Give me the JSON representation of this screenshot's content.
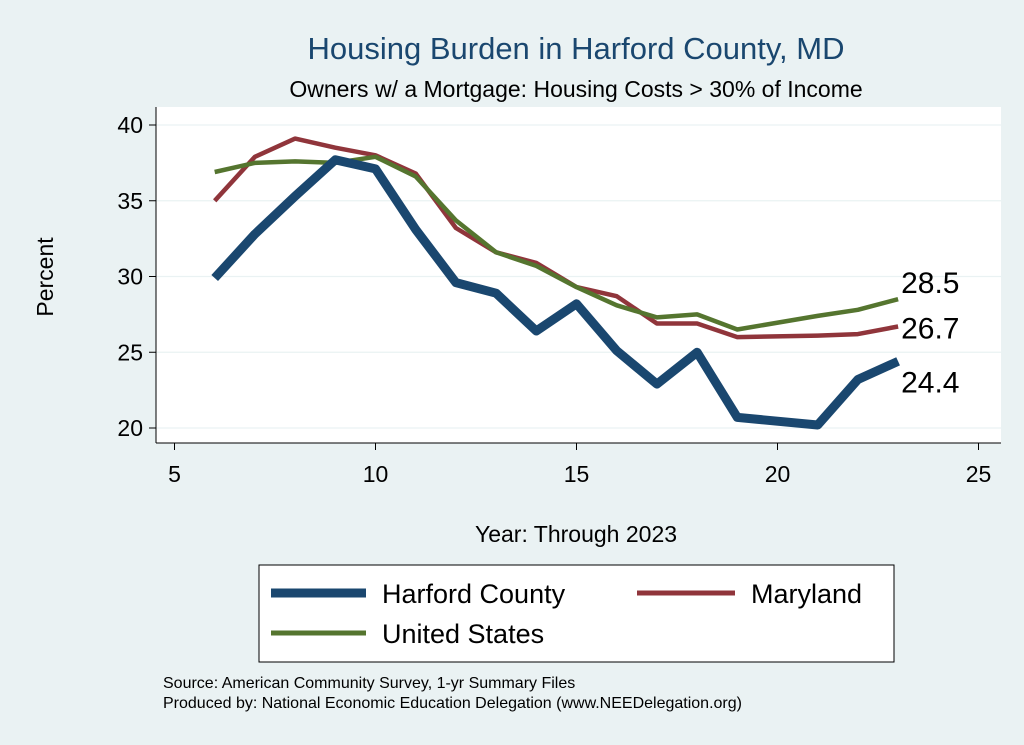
{
  "chart_data": {
    "type": "line",
    "title": "Housing Burden in Harford County, MD",
    "subtitle": "Owners w/ a Mortgage: Housing Costs > 30% of Income",
    "xlabel": "Year: Through 2023",
    "ylabel": "Percent",
    "xlim": [
      5,
      25
    ],
    "ylim": [
      20,
      40
    ],
    "xticks": [
      5,
      10,
      15,
      20,
      25
    ],
    "yticks": [
      20,
      25,
      30,
      35,
      40
    ],
    "grid": true,
    "legend_position": "bottom",
    "x": [
      6,
      7,
      8,
      9,
      10,
      11,
      12,
      13,
      14,
      15,
      16,
      17,
      18,
      19,
      21,
      22,
      23
    ],
    "series": [
      {
        "name": "Harford County",
        "color": "#1a476f",
        "width": 9,
        "values": [
          29.9,
          32.8,
          35.3,
          37.7,
          37.1,
          33.1,
          29.6,
          28.9,
          26.4,
          28.2,
          25.1,
          22.9,
          25.0,
          20.7,
          20.2,
          23.2,
          24.4
        ],
        "end_label": "24.4"
      },
      {
        "name": "Maryland",
        "color": "#90353b",
        "width": 4.5,
        "values": [
          35.0,
          37.9,
          39.1,
          38.5,
          38.0,
          36.8,
          33.2,
          31.6,
          30.9,
          29.3,
          28.7,
          26.9,
          26.9,
          26.0,
          26.1,
          26.2,
          26.7
        ],
        "end_label": "26.7"
      },
      {
        "name": "United States",
        "color": "#55752f",
        "width": 4.5,
        "values": [
          36.9,
          37.5,
          37.6,
          37.5,
          37.9,
          36.6,
          33.7,
          31.6,
          30.7,
          29.3,
          28.1,
          27.3,
          27.5,
          26.5,
          27.4,
          27.8,
          28.5
        ],
        "end_label": "28.5"
      }
    ]
  },
  "legend": {
    "items": [
      "Harford County",
      "Maryland",
      "United States"
    ]
  },
  "notes": {
    "source": "Source: American Community Survey, 1-yr Summary Files",
    "produced_by": "Produced by: National Economic Education Delegation (www.NEEDelegation.org)"
  }
}
